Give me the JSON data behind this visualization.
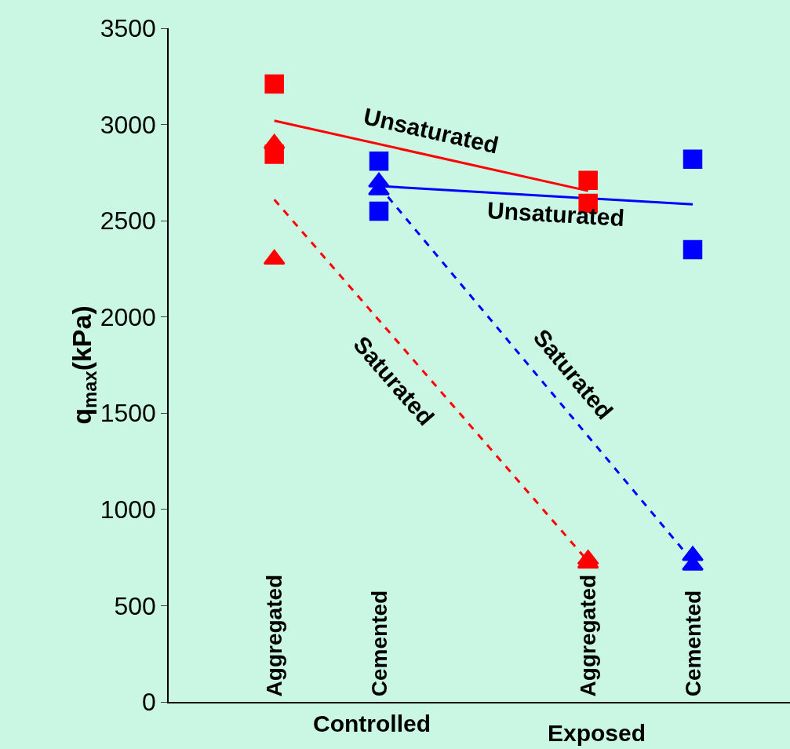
{
  "chart_data": {
    "type": "scatter",
    "ylabel": "q$_{max}$(kPa)",
    "categories": [
      "Aggregated",
      "Cemented",
      null,
      "Aggregated",
      "Cemented"
    ],
    "ylim": [
      0,
      3500
    ],
    "yticks": [
      0,
      500,
      1000,
      1500,
      2000,
      2500,
      3000,
      3500
    ],
    "grid": false,
    "annotations": [
      "Controlled",
      "Exposed"
    ],
    "series": [
      {
        "type": "line",
        "name": "Unsaturated",
        "color": "#ff0000",
        "values": [
          3020,
          null,
          null,
          2655,
          null
        ],
        "line_style": "solid",
        "marker": "none"
      },
      {
        "type": "line",
        "name": "Unsaturated",
        "color": "#0000ff",
        "values": [
          null,
          2680,
          null,
          null,
          2585
        ],
        "line_style": "solid",
        "marker": "none"
      },
      {
        "type": "line",
        "name": "Saturated",
        "color": "#ff0000",
        "values": [
          2610,
          null,
          null,
          730,
          null
        ],
        "line_style": "dashed",
        "marker": "none"
      },
      {
        "type": "line",
        "name": "Saturated",
        "color": "#0000ff",
        "values": [
          null,
          2680,
          null,
          null,
          730
        ],
        "line_style": "dashed",
        "marker": "none"
      },
      {
        "color": "#ff0000",
        "values": [
          3210,
          null,
          null,
          2710,
          null
        ],
        "marker": "square"
      },
      {
        "color": "#ff0000",
        "values": [
          2845,
          null,
          null,
          2590,
          null
        ],
        "marker": "square"
      },
      {
        "color": "#ff0000",
        "values": [
          2900,
          null,
          null,
          740,
          null
        ],
        "marker": "triangle"
      },
      {
        "color": "#ff0000",
        "values": [
          2300,
          null,
          null,
          720,
          null
        ],
        "marker": "triangle"
      },
      {
        "color": "#0000ff",
        "values": [
          null,
          2810,
          null,
          null,
          2820
        ],
        "marker": "square"
      },
      {
        "color": "#0000ff",
        "values": [
          null,
          2550,
          null,
          null,
          2350
        ],
        "marker": "square"
      },
      {
        "color": "#0000ff",
        "values": [
          null,
          2700,
          null,
          null,
          760
        ],
        "marker": "triangle"
      },
      {
        "color": "#0000ff",
        "values": [
          null,
          2660,
          null,
          null,
          710
        ],
        "marker": "triangle"
      }
    ]
  }
}
